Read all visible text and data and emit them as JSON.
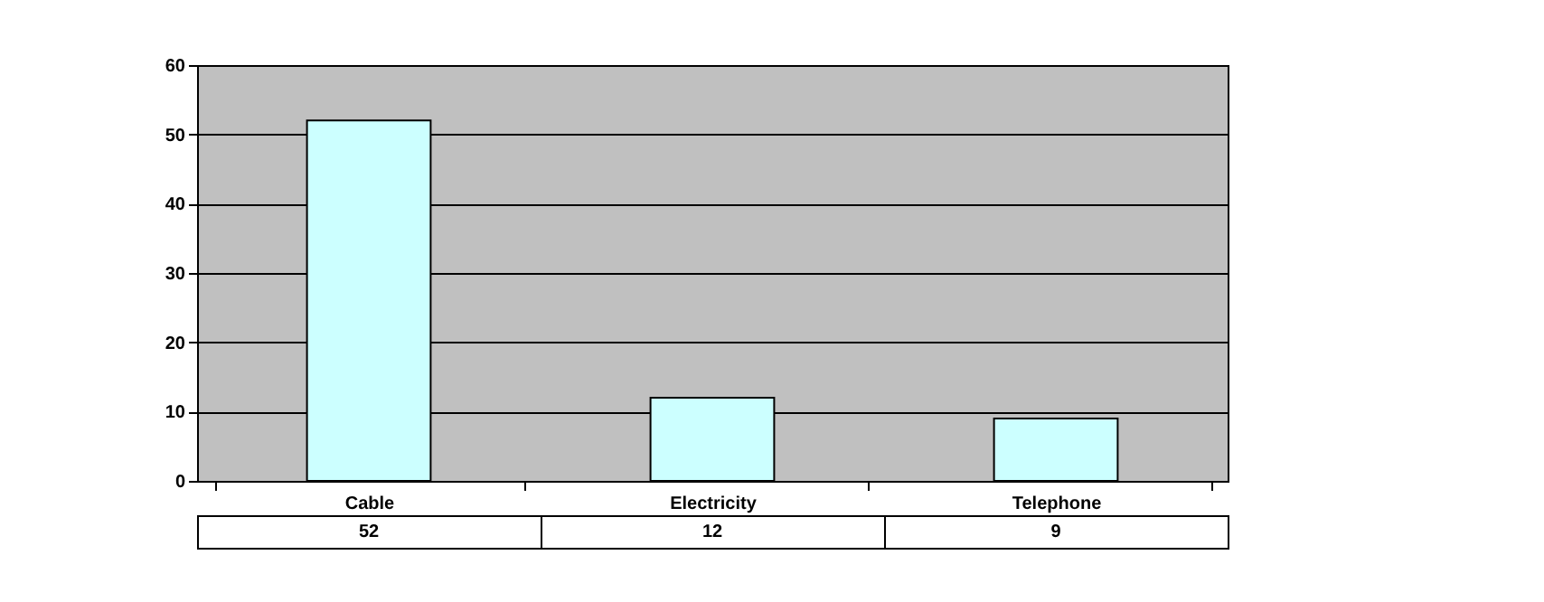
{
  "chart_data": {
    "type": "bar",
    "categories": [
      "Cable",
      "Electricity",
      "Telephone"
    ],
    "values": [
      52,
      12,
      9
    ],
    "color": "#ccffff",
    "ylim": [
      0,
      60
    ],
    "yticks": [
      0,
      10,
      20,
      30,
      40,
      50,
      60
    ],
    "grid": "y",
    "data_labels": true
  }
}
